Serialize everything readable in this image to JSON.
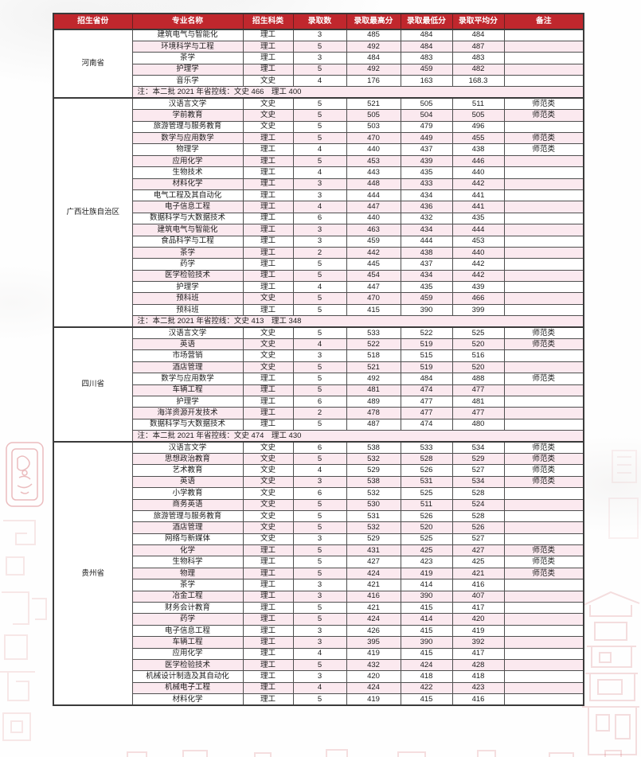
{
  "colors": {
    "header_bg": "#C0272D",
    "row_pink": "#FBE9EF",
    "border": "#4f4f4f",
    "decor_red": "#C0272D"
  },
  "table": {
    "headers": [
      "招生省份",
      "专业名称",
      "招生科类",
      "录取数",
      "录取最高分",
      "录取最低分",
      "录取平均分",
      "备注"
    ],
    "sections": [
      {
        "province": "河南省",
        "rows": [
          [
            "建筑电气与智能化",
            "理工",
            "3",
            "485",
            "484",
            "484",
            ""
          ],
          [
            "环境科学与工程",
            "理工",
            "5",
            "492",
            "484",
            "487",
            ""
          ],
          [
            "茶学",
            "理工",
            "3",
            "484",
            "483",
            "483",
            ""
          ],
          [
            "护理学",
            "理工",
            "5",
            "492",
            "459",
            "482",
            ""
          ],
          [
            "音乐学",
            "文史",
            "4",
            "176",
            "163",
            "168.3",
            ""
          ]
        ],
        "note": "注：本二批 2021 年省控线：文史 466　理工 400"
      },
      {
        "province": "广西壮族自治区",
        "rows": [
          [
            "汉语言文学",
            "文史",
            "5",
            "521",
            "505",
            "511",
            "师范类"
          ],
          [
            "学前教育",
            "文史",
            "5",
            "505",
            "504",
            "505",
            "师范类"
          ],
          [
            "旅游管理与服务教育",
            "文史",
            "5",
            "503",
            "479",
            "496",
            ""
          ],
          [
            "数学与应用数学",
            "理工",
            "5",
            "470",
            "449",
            "455",
            "师范类"
          ],
          [
            "物理学",
            "理工",
            "4",
            "440",
            "437",
            "438",
            "师范类"
          ],
          [
            "应用化学",
            "理工",
            "5",
            "453",
            "439",
            "446",
            ""
          ],
          [
            "生物技术",
            "理工",
            "4",
            "443",
            "435",
            "440",
            ""
          ],
          [
            "材料化学",
            "理工",
            "3",
            "448",
            "433",
            "442",
            ""
          ],
          [
            "电气工程及其自动化",
            "理工",
            "3",
            "444",
            "434",
            "441",
            ""
          ],
          [
            "电子信息工程",
            "理工",
            "4",
            "447",
            "436",
            "441",
            ""
          ],
          [
            "数据科学与大数据技术",
            "理工",
            "6",
            "440",
            "432",
            "435",
            ""
          ],
          [
            "建筑电气与智能化",
            "理工",
            "3",
            "463",
            "434",
            "444",
            ""
          ],
          [
            "食品科学与工程",
            "理工",
            "3",
            "459",
            "444",
            "453",
            ""
          ],
          [
            "茶学",
            "理工",
            "2",
            "442",
            "438",
            "440",
            ""
          ],
          [
            "药学",
            "理工",
            "5",
            "445",
            "437",
            "442",
            ""
          ],
          [
            "医学检验技术",
            "理工",
            "5",
            "454",
            "434",
            "442",
            ""
          ],
          [
            "护理学",
            "理工",
            "4",
            "447",
            "435",
            "439",
            ""
          ],
          [
            "预科班",
            "文史",
            "5",
            "470",
            "459",
            "466",
            ""
          ],
          [
            "预科班",
            "理工",
            "5",
            "415",
            "390",
            "399",
            ""
          ]
        ],
        "note": "注：本二批 2021 年省控线：文史 413　理工 348"
      },
      {
        "province": "四川省",
        "rows": [
          [
            "汉语言文学",
            "文史",
            "5",
            "533",
            "522",
            "525",
            "师范类"
          ],
          [
            "英语",
            "文史",
            "4",
            "522",
            "519",
            "520",
            "师范类"
          ],
          [
            "市场营销",
            "文史",
            "3",
            "518",
            "515",
            "516",
            ""
          ],
          [
            "酒店管理",
            "文史",
            "5",
            "521",
            "519",
            "520",
            ""
          ],
          [
            "数学与应用数学",
            "理工",
            "5",
            "492",
            "484",
            "488",
            "师范类"
          ],
          [
            "车辆工程",
            "理工",
            "5",
            "481",
            "474",
            "477",
            ""
          ],
          [
            "护理学",
            "理工",
            "6",
            "489",
            "477",
            "481",
            ""
          ],
          [
            "海洋资源开发技术",
            "理工",
            "2",
            "478",
            "477",
            "477",
            ""
          ],
          [
            "数据科学与大数据技术",
            "理工",
            "5",
            "487",
            "474",
            "480",
            ""
          ]
        ],
        "note": "注：本二批 2021 年省控线：文史 474　理工 430"
      },
      {
        "province": "贵州省",
        "rows": [
          [
            "汉语言文学",
            "文史",
            "6",
            "538",
            "533",
            "534",
            "师范类"
          ],
          [
            "思想政治教育",
            "文史",
            "5",
            "532",
            "528",
            "529",
            "师范类"
          ],
          [
            "艺术教育",
            "文史",
            "4",
            "529",
            "526",
            "527",
            "师范类"
          ],
          [
            "英语",
            "文史",
            "3",
            "538",
            "531",
            "534",
            "师范类"
          ],
          [
            "小学教育",
            "文史",
            "6",
            "532",
            "525",
            "528",
            ""
          ],
          [
            "商务英语",
            "文史",
            "5",
            "530",
            "511",
            "524",
            ""
          ],
          [
            "旅游管理与服务教育",
            "文史",
            "5",
            "531",
            "526",
            "528",
            ""
          ],
          [
            "酒店管理",
            "文史",
            "5",
            "532",
            "520",
            "526",
            ""
          ],
          [
            "网络与新媒体",
            "文史",
            "3",
            "529",
            "525",
            "527",
            ""
          ],
          [
            "化学",
            "理工",
            "5",
            "431",
            "425",
            "427",
            "师范类"
          ],
          [
            "生物科学",
            "理工",
            "5",
            "427",
            "423",
            "425",
            "师范类"
          ],
          [
            "物理",
            "理工",
            "5",
            "424",
            "419",
            "421",
            "师范类"
          ],
          [
            "茶学",
            "理工",
            "3",
            "421",
            "414",
            "416",
            ""
          ],
          [
            "冶金工程",
            "理工",
            "3",
            "416",
            "390",
            "407",
            ""
          ],
          [
            "财务会计教育",
            "理工",
            "5",
            "421",
            "415",
            "417",
            ""
          ],
          [
            "药学",
            "理工",
            "5",
            "424",
            "414",
            "420",
            ""
          ],
          [
            "电子信息工程",
            "理工",
            "3",
            "426",
            "415",
            "419",
            ""
          ],
          [
            "车辆工程",
            "理工",
            "3",
            "395",
            "390",
            "392",
            ""
          ],
          [
            "应用化学",
            "理工",
            "4",
            "419",
            "415",
            "417",
            ""
          ],
          [
            "医学检验技术",
            "理工",
            "5",
            "432",
            "424",
            "428",
            ""
          ],
          [
            "机械设计制造及其自动化",
            "理工",
            "3",
            "420",
            "418",
            "418",
            ""
          ],
          [
            "机械电子工程",
            "理工",
            "4",
            "424",
            "422",
            "423",
            ""
          ],
          [
            "材料化学",
            "理工",
            "5",
            "419",
            "415",
            "416",
            ""
          ]
        ],
        "note": ""
      }
    ]
  }
}
